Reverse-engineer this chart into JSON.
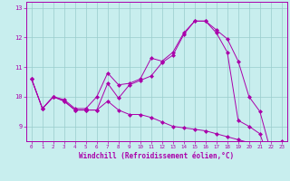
{
  "xlabel": "Windchill (Refroidissement éolien,°C)",
  "xlim": [
    -0.5,
    23.5
  ],
  "ylim": [
    8.5,
    13.2
  ],
  "yticks": [
    9,
    10,
    11,
    12,
    13
  ],
  "xticks": [
    0,
    1,
    2,
    3,
    4,
    5,
    6,
    7,
    8,
    9,
    10,
    11,
    12,
    13,
    14,
    15,
    16,
    17,
    18,
    19,
    20,
    21,
    22,
    23
  ],
  "bg_color": "#c8eeee",
  "line_color": "#aa00aa",
  "grid_color": "#99cccc",
  "series": [
    {
      "x": [
        0,
        1,
        2,
        3,
        4,
        5,
        6,
        7,
        8,
        9,
        10,
        11,
        12,
        13,
        14,
        15,
        16,
        17,
        18,
        19,
        20,
        21,
        22,
        23
      ],
      "y": [
        10.6,
        9.6,
        10.0,
        9.9,
        9.6,
        9.6,
        10.0,
        10.8,
        10.4,
        10.45,
        10.6,
        11.3,
        11.2,
        11.5,
        12.15,
        12.55,
        12.55,
        12.25,
        11.95,
        11.2,
        10.0,
        9.5,
        8.15,
        8.5
      ]
    },
    {
      "x": [
        0,
        1,
        2,
        3,
        4,
        5,
        6,
        7,
        8,
        9,
        10,
        11,
        12,
        13,
        14,
        15,
        16,
        17,
        18,
        19,
        20,
        21,
        22,
        23
      ],
      "y": [
        10.6,
        9.6,
        10.0,
        9.85,
        9.55,
        9.55,
        9.55,
        10.45,
        9.95,
        10.4,
        10.55,
        10.7,
        11.15,
        11.4,
        12.1,
        12.55,
        12.55,
        12.15,
        11.5,
        9.2,
        9.0,
        8.75,
        7.7,
        8.4
      ]
    },
    {
      "x": [
        0,
        1,
        2,
        3,
        4,
        5,
        6,
        7,
        8,
        9,
        10,
        11,
        12,
        13,
        14,
        15,
        16,
        17,
        18,
        19,
        20,
        21,
        22,
        23
      ],
      "y": [
        10.6,
        9.6,
        10.0,
        9.85,
        9.55,
        9.55,
        9.55,
        9.85,
        9.55,
        9.4,
        9.4,
        9.3,
        9.15,
        9.0,
        8.95,
        8.9,
        8.85,
        8.75,
        8.65,
        8.55,
        8.45,
        8.35,
        8.3,
        8.4
      ]
    }
  ]
}
